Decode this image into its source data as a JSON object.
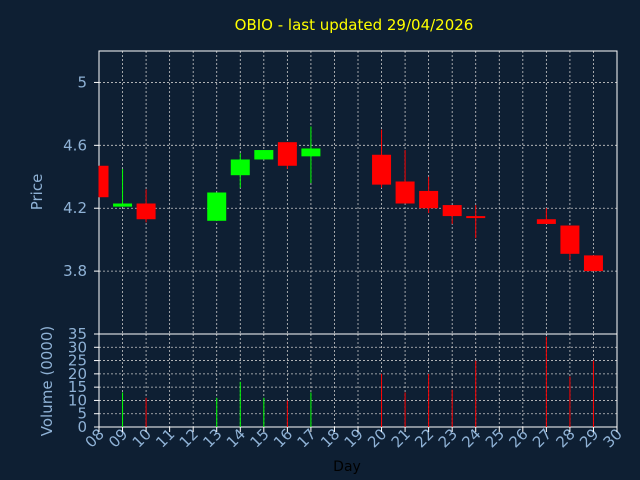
{
  "chart_data": [
    {
      "type": "candlestick",
      "title": "OBIO - last updated 29/04/2026",
      "ylabel": "Price",
      "ylim": [
        3.4,
        5.2
      ],
      "yticks": [
        "3.8",
        "4.2",
        "4.6",
        "5"
      ],
      "grid": true,
      "up_color": "#00ff00",
      "down_color": "#ff0000",
      "candles": [
        {
          "day": 8,
          "open": 4.47,
          "close": 4.27,
          "high": 4.47,
          "low": 4.27
        },
        {
          "day": 9,
          "open": 4.21,
          "close": 4.23,
          "high": 4.45,
          "low": 4.21
        },
        {
          "day": 10,
          "open": 4.23,
          "close": 4.13,
          "high": 4.32,
          "low": 4.11
        },
        {
          "day": 13,
          "open": 4.12,
          "close": 4.3,
          "high": 4.3,
          "low": 4.12
        },
        {
          "day": 14,
          "open": 4.41,
          "close": 4.51,
          "high": 4.55,
          "low": 4.33
        },
        {
          "day": 15,
          "open": 4.51,
          "close": 4.57,
          "high": 4.57,
          "low": 4.51
        },
        {
          "day": 16,
          "open": 4.62,
          "close": 4.47,
          "high": 4.62,
          "low": 4.45
        },
        {
          "day": 17,
          "open": 4.53,
          "close": 4.58,
          "high": 4.72,
          "low": 4.36
        },
        {
          "day": 20,
          "open": 4.54,
          "close": 4.35,
          "high": 4.7,
          "low": 4.33
        },
        {
          "day": 21,
          "open": 4.37,
          "close": 4.23,
          "high": 4.57,
          "low": 4.23
        },
        {
          "day": 22,
          "open": 4.31,
          "close": 4.2,
          "high": 4.4,
          "low": 4.17
        },
        {
          "day": 23,
          "open": 4.22,
          "close": 4.15,
          "high": 4.22,
          "low": 4.1
        },
        {
          "day": 24,
          "open": 4.15,
          "close": 4.14,
          "high": 4.22,
          "low": 4.01
        },
        {
          "day": 27,
          "open": 4.13,
          "close": 4.1,
          "high": 4.2,
          "low": 4.1
        },
        {
          "day": 28,
          "open": 4.09,
          "close": 3.91,
          "high": 4.09,
          "low": 3.87
        },
        {
          "day": 29,
          "open": 3.9,
          "close": 3.8,
          "high": 3.9,
          "low": 3.8
        }
      ]
    },
    {
      "type": "bar",
      "ylabel": "Volume (0000)",
      "xlabel": "Day",
      "ylim": [
        0,
        35
      ],
      "yticks": [
        "0",
        "5",
        "10",
        "15",
        "20",
        "25",
        "30",
        "35"
      ],
      "xticks": [
        "08",
        "09",
        "10",
        "11",
        "12",
        "13",
        "14",
        "15",
        "16",
        "17",
        "18",
        "19",
        "20",
        "21",
        "22",
        "23",
        "24",
        "25",
        "26",
        "27",
        "28",
        "29",
        "30"
      ],
      "grid": true,
      "volumes": [
        {
          "day": 9,
          "value": 13,
          "color": "#00ff00"
        },
        {
          "day": 10,
          "value": 11,
          "color": "#ff0000"
        },
        {
          "day": 13,
          "value": 11,
          "color": "#00ff00"
        },
        {
          "day": 14,
          "value": 17,
          "color": "#00ff00"
        },
        {
          "day": 15,
          "value": 11,
          "color": "#00ff00"
        },
        {
          "day": 16,
          "value": 10,
          "color": "#ff0000"
        },
        {
          "day": 17,
          "value": 13,
          "color": "#00ff00"
        },
        {
          "day": 20,
          "value": 20,
          "color": "#ff0000"
        },
        {
          "day": 21,
          "value": 13,
          "color": "#ff0000"
        },
        {
          "day": 22,
          "value": 20,
          "color": "#ff0000"
        },
        {
          "day": 23,
          "value": 14,
          "color": "#ff0000"
        },
        {
          "day": 24,
          "value": 25,
          "color": "#ff0000"
        },
        {
          "day": 27,
          "value": 34,
          "color": "#ff0000"
        },
        {
          "day": 28,
          "value": 19,
          "color": "#ff0000"
        },
        {
          "day": 29,
          "value": 25,
          "color": "#ff0000"
        }
      ]
    }
  ]
}
